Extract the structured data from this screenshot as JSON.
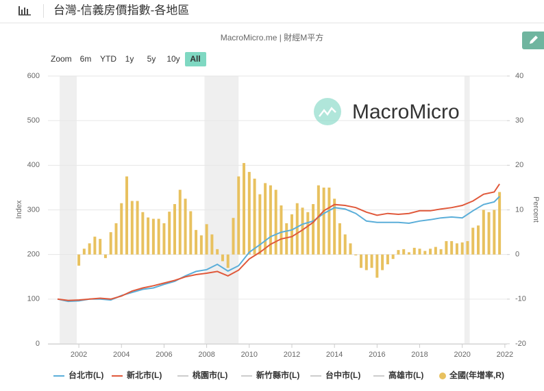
{
  "header": {
    "title": "台灣-信義房價指數-各地區"
  },
  "zoom": {
    "label": "Zoom",
    "buttons": [
      {
        "label": "6m",
        "enabled": false
      },
      {
        "label": "YTD",
        "enabled": true
      },
      {
        "label": "1y",
        "enabled": false
      },
      {
        "label": "5y",
        "enabled": true
      },
      {
        "label": "10y",
        "enabled": true
      },
      {
        "label": "All",
        "enabled": true,
        "selected": true
      }
    ]
  },
  "watermark": "MacroMicro",
  "chart_data": {
    "type": "line",
    "subtitle": "MacroMicro.me | 財經M平方",
    "ylabel": "Index",
    "y2label": "Percent",
    "xlim": [
      2000.55,
      2022.1
    ],
    "xticks": [
      2002,
      2004,
      2006,
      2008,
      2010,
      2012,
      2014,
      2016,
      2018,
      2020,
      2022
    ],
    "ylim": [
      0,
      600
    ],
    "yticks": [
      0,
      100,
      200,
      300,
      400,
      500,
      600
    ],
    "y2lim": [
      -20,
      40
    ],
    "y2ticks": [
      -20,
      -10,
      0,
      10,
      20,
      30,
      40
    ],
    "grid": true,
    "shaded_ranges": [
      [
        2001.1,
        2001.9
      ],
      [
        2007.9,
        2009.5
      ],
      [
        2020.1,
        2020.35
      ]
    ],
    "x": [
      2001.0,
      2001.5,
      2002.0,
      2002.5,
      2003.0,
      2003.5,
      2004.0,
      2004.5,
      2005.0,
      2005.5,
      2006.0,
      2006.5,
      2007.0,
      2007.5,
      2008.0,
      2008.5,
      2009.0,
      2009.5,
      2010.0,
      2010.5,
      2011.0,
      2011.5,
      2012.0,
      2012.5,
      2013.0,
      2013.5,
      2014.0,
      2014.5,
      2015.0,
      2015.5,
      2016.0,
      2016.5,
      2017.0,
      2017.5,
      2018.0,
      2018.5,
      2019.0,
      2019.5,
      2020.0,
      2020.5,
      2021.0,
      2021.5,
      2021.75
    ],
    "series": [
      {
        "name": "台北市(L)",
        "color": "#5aaed9",
        "values": [
          100,
          95,
          96,
          100,
          100,
          98,
          108,
          115,
          122,
          125,
          133,
          140,
          152,
          162,
          166,
          178,
          163,
          175,
          205,
          222,
          240,
          250,
          255,
          268,
          275,
          292,
          305,
          302,
          292,
          275,
          272,
          272,
          272,
          270,
          275,
          278,
          282,
          284,
          282,
          298,
          312,
          318,
          330
        ]
      },
      {
        "name": "新北市(L)",
        "color": "#e0583a",
        "values": [
          100,
          97,
          98,
          100,
          102,
          100,
          107,
          118,
          125,
          130,
          136,
          142,
          150,
          155,
          158,
          162,
          152,
          165,
          190,
          205,
          223,
          235,
          240,
          255,
          272,
          298,
          312,
          310,
          305,
          295,
          288,
          292,
          290,
          292,
          298,
          298,
          302,
          305,
          310,
          320,
          335,
          340,
          358
        ]
      }
    ],
    "hidden_series": [
      "桃園市(L)",
      "新竹縣市(L)",
      "台中市(L)",
      "高雄市(L)"
    ],
    "bar_series": {
      "name": "全國(年增率,R)",
      "color": "#e8c15f",
      "axis": "y2",
      "x": [
        2002.0,
        2002.25,
        2002.5,
        2002.75,
        2003.0,
        2003.25,
        2003.5,
        2003.75,
        2004.0,
        2004.25,
        2004.5,
        2004.75,
        2005.0,
        2005.25,
        2005.5,
        2005.75,
        2006.0,
        2006.25,
        2006.5,
        2006.75,
        2007.0,
        2007.25,
        2007.5,
        2007.75,
        2008.0,
        2008.25,
        2008.5,
        2008.75,
        2009.0,
        2009.25,
        2009.5,
        2009.75,
        2010.0,
        2010.25,
        2010.5,
        2010.75,
        2011.0,
        2011.25,
        2011.5,
        2011.75,
        2012.0,
        2012.25,
        2012.5,
        2012.75,
        2013.0,
        2013.25,
        2013.5,
        2013.75,
        2014.0,
        2014.25,
        2014.5,
        2014.75,
        2015.0,
        2015.25,
        2015.5,
        2015.75,
        2016.0,
        2016.25,
        2016.5,
        2016.75,
        2017.0,
        2017.25,
        2017.5,
        2017.75,
        2018.0,
        2018.25,
        2018.5,
        2018.75,
        2019.0,
        2019.25,
        2019.5,
        2019.75,
        2020.0,
        2020.25,
        2020.5,
        2020.75,
        2021.0,
        2021.25,
        2021.5,
        2021.75
      ],
      "values": [
        -2.5,
        1.3,
        2.5,
        4,
        3.5,
        -0.8,
        5,
        7,
        11.5,
        17.5,
        12,
        12,
        9.5,
        8.3,
        8,
        8,
        7,
        9.6,
        11.3,
        14.5,
        12.5,
        9.7,
        5.5,
        4.3,
        6.8,
        4.5,
        1.2,
        -1.5,
        -3,
        8.2,
        17.5,
        20.5,
        18.5,
        17,
        13.5,
        16,
        15.5,
        14.5,
        11,
        7,
        9,
        11.5,
        10.5,
        9.5,
        11.3,
        15.5,
        15,
        15,
        12.5,
        7,
        4.5,
        2.5,
        -0.2,
        -3,
        -3.5,
        -3,
        -5.2,
        -3.5,
        -2.2,
        -1,
        1,
        1.2,
        0.5,
        1.5,
        1.3,
        0.8,
        1.3,
        1.7,
        1.2,
        3,
        3,
        2.5,
        2.7,
        3,
        6,
        6.5,
        10,
        9.5,
        10,
        14
      ]
    }
  }
}
